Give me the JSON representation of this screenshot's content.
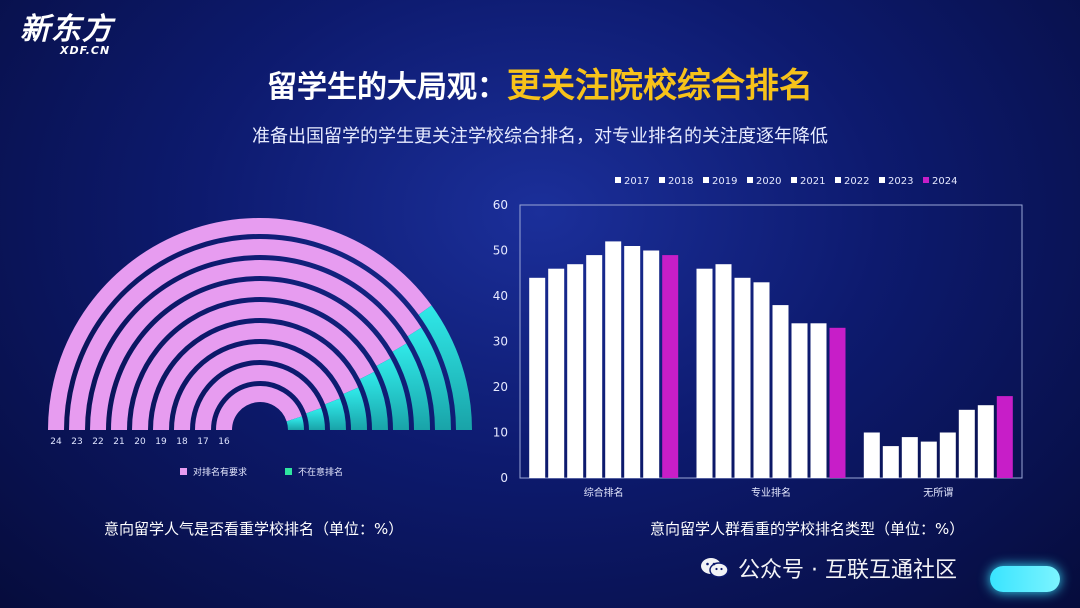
{
  "logo": {
    "main": "新东方",
    "sub": "XDF.CN"
  },
  "title": {
    "prefix": "留学生的大局观：",
    "highlight": "更关注院校综合排名"
  },
  "subtitle": "准备出国留学的学生更关注学校综合排名，对专业排名的关注度逐年降低",
  "colors": {
    "pink": "#e79cf0",
    "cyan": "#2fe6e6",
    "teal": "#19a3a8",
    "bar_white": "#ffffff",
    "bar_magenta": "#c71ec8",
    "axis": "#9aa6d6"
  },
  "chart_data": [
    {
      "type": "radial-bar",
      "title": "意向留学人气是否看重学校排名（单位：%）",
      "series": [
        {
          "name": "对排名有要求",
          "color": "#e79cf0"
        },
        {
          "name": "不在意排名",
          "color": "#2fe6e6"
        }
      ],
      "rings_outer_to_inner": [
        {
          "label": "24",
          "care": 80,
          "not_care": 20
        },
        {
          "label": "23",
          "care": 82,
          "not_care": 18
        },
        {
          "label": "22",
          "care": 83,
          "not_care": 17
        },
        {
          "label": "21",
          "care": 84,
          "not_care": 16
        },
        {
          "label": "20",
          "care": 85,
          "not_care": 15
        },
        {
          "label": "19",
          "care": 87,
          "not_care": 13
        },
        {
          "label": "18",
          "care": 88,
          "not_care": 12
        },
        {
          "label": "17",
          "care": 89,
          "not_care": 11
        },
        {
          "label": "16",
          "care": 90,
          "not_care": 10
        }
      ]
    },
    {
      "type": "bar",
      "title": "意向留学人群看重的学校排名类型（单位：%）",
      "categories": [
        "综合排名",
        "专业排名",
        "无所谓"
      ],
      "series": [
        {
          "name": "2017",
          "values": [
            44,
            46,
            10
          ]
        },
        {
          "name": "2018",
          "values": [
            46,
            47,
            7
          ]
        },
        {
          "name": "2019",
          "values": [
            47,
            44,
            9
          ]
        },
        {
          "name": "2020",
          "values": [
            49,
            43,
            8
          ]
        },
        {
          "name": "2021",
          "values": [
            52,
            38,
            10
          ]
        },
        {
          "name": "2022",
          "values": [
            51,
            34,
            15
          ]
        },
        {
          "name": "2023",
          "values": [
            50,
            34,
            16
          ]
        },
        {
          "name": "2024",
          "values": [
            49,
            33,
            18
          ]
        }
      ],
      "yticks": [
        "0",
        "10",
        "20",
        "30",
        "40",
        "50",
        "60"
      ],
      "ylim": [
        0,
        60
      ],
      "legend_position": "top"
    }
  ],
  "footer": {
    "text": "公众号 · 互联互通社区"
  }
}
